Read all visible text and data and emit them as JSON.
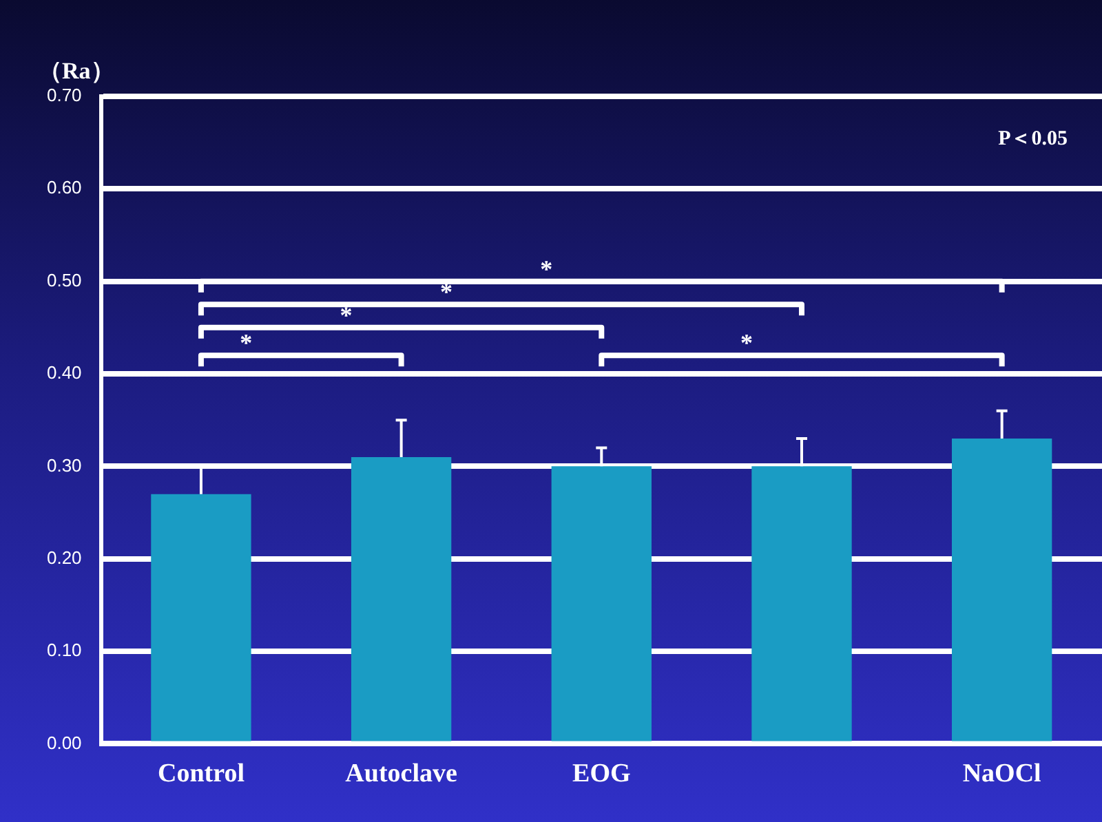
{
  "chart_data": {
    "type": "bar",
    "ylabel": "（Ra）",
    "categories": [
      "Control",
      "Autoclave",
      "EOG",
      null,
      "NaOCl"
    ],
    "values": [
      0.27,
      0.31,
      0.3,
      0.3,
      0.33
    ],
    "errors": [
      [
        0.27,
        0.3
      ],
      [
        0.31,
        0.35
      ],
      [
        0.3,
        0.32
      ],
      [
        0.3,
        0.33
      ],
      [
        0.33,
        0.36
      ]
    ],
    "color": "#1a9cc4",
    "ylim": [
      0,
      0.7
    ],
    "yticks": [
      {
        "value": 0,
        "label": "0.00"
      },
      {
        "value": 0.1,
        "label": "0.10"
      },
      {
        "value": 0.2,
        "label": "0.20"
      },
      {
        "value": 0.3,
        "label": "0.30"
      },
      {
        "value": 0.4,
        "label": "0.40"
      },
      {
        "value": 0.5,
        "label": "0.50"
      },
      {
        "value": 0.6,
        "label": "0.60"
      },
      {
        "value": 0.7,
        "label": "0.70"
      }
    ],
    "grid": "y",
    "annotations": [
      "P＜0.05",
      "*",
      "*",
      "*",
      "*",
      "*"
    ]
  }
}
